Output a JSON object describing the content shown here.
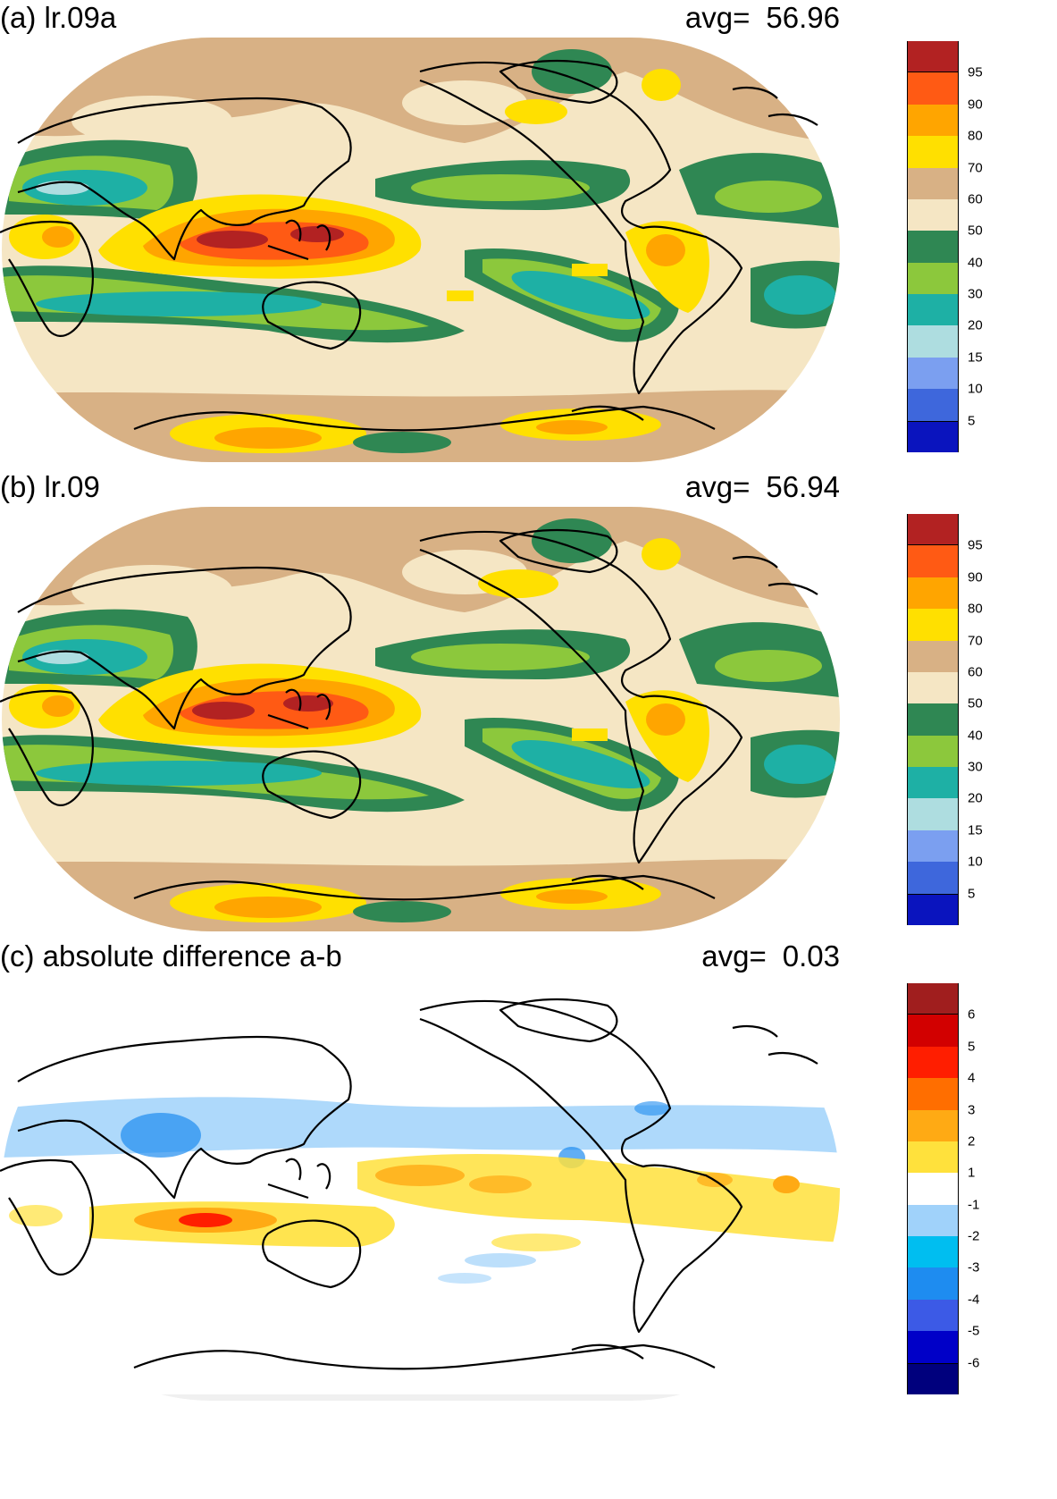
{
  "panels": [
    {
      "title": "(a) lr.09a",
      "avg_label": "avg=",
      "avg_value": "56.96",
      "colors": [
        "#0a14be",
        "#3e67dc",
        "#7b9ff0",
        "#aedde0",
        "#1eb0a5",
        "#8cc83c",
        "#2f8753",
        "#f5e6c4",
        "#d8b185",
        "#ffe000",
        "#ffa500",
        "#ff5a14",
        "#b22222"
      ],
      "ticks": [
        "5",
        "10",
        "15",
        "20",
        "30",
        "40",
        "50",
        "60",
        "70",
        "80",
        "90",
        "95"
      ]
    },
    {
      "title": "(b) lr.09",
      "avg_label": "avg=",
      "avg_value": "56.94",
      "colors": [
        "#0a14be",
        "#3e67dc",
        "#7b9ff0",
        "#aedde0",
        "#1eb0a5",
        "#8cc83c",
        "#2f8753",
        "#f5e6c4",
        "#d8b185",
        "#ffe000",
        "#ffa500",
        "#ff5a14",
        "#b22222"
      ],
      "ticks": [
        "5",
        "10",
        "15",
        "20",
        "30",
        "40",
        "50",
        "60",
        "70",
        "80",
        "90",
        "95"
      ]
    },
    {
      "title": "(c) absolute difference a-b",
      "avg_label": "avg=",
      "avg_value": "0.03",
      "colors": [
        "#00007d",
        "#0000c8",
        "#3c5ae6",
        "#1e8cf0",
        "#00bef0",
        "#a0d2fa",
        "#ffffff",
        "#ffe13c",
        "#ffaa14",
        "#ff6e00",
        "#ff1e00",
        "#d20000",
        "#a01e1e"
      ],
      "ticks": [
        "-6",
        "-5",
        "-4",
        "-3",
        "-2",
        "-1",
        "1",
        "2",
        "3",
        "4",
        "5",
        "6"
      ]
    }
  ]
}
